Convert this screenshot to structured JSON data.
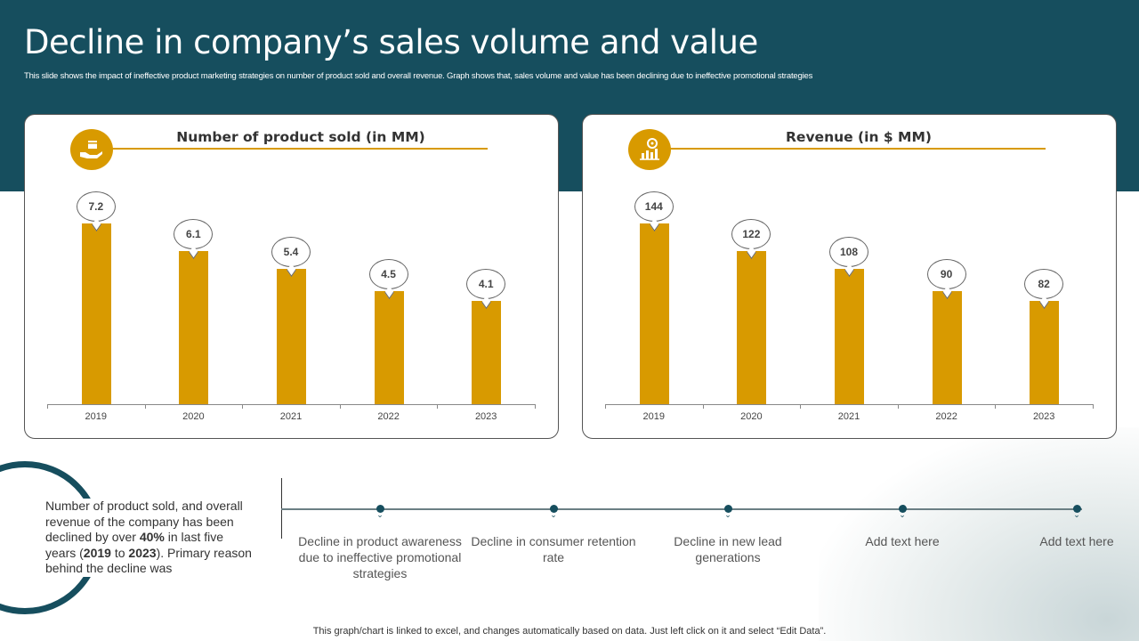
{
  "title": "Decline in company’s sales volume and value",
  "subtitle": "This slide shows the impact of ineffective product marketing strategies on number of product sold and overall revenue. Graph shows that, sales volume and value has been declining due to ineffective promotional strategies",
  "colors": {
    "header": "#164e5e",
    "bar": "#d89a00"
  },
  "chart_data": [
    {
      "type": "bar",
      "title": "Number of product sold (in MM)",
      "icon": "hand-box-icon",
      "categories": [
        "2019",
        "2020",
        "2021",
        "2022",
        "2023"
      ],
      "values": [
        7.2,
        6.1,
        5.4,
        4.5,
        4.1
      ],
      "data_labels": [
        "7.2",
        "6.1",
        "5.4",
        "4.5",
        "4.1"
      ],
      "ylim": [
        0,
        7.2
      ],
      "grid": false
    },
    {
      "type": "bar",
      "title": "Revenue (in $ MM)",
      "icon": "revenue-chart-gear-icon",
      "categories": [
        "2019",
        "2020",
        "2021",
        "2022",
        "2023"
      ],
      "values": [
        144,
        122,
        108,
        90,
        82
      ],
      "data_labels": [
        "144",
        "122",
        "108",
        "90",
        "82"
      ],
      "ylim": [
        0,
        144
      ],
      "grid": false
    }
  ],
  "summary": {
    "p1": "Number of product sold, and overall revenue of the company has been declined by over ",
    "b1": "40%",
    "p2": " in last five years (",
    "b2": "2019",
    "p3": " to ",
    "b3": "2023",
    "p4": "). Primary reason behind the decline was"
  },
  "timeline": [
    "Decline in product awareness due to ineffective promotional strategies",
    "Decline in consumer retention rate",
    "Decline in new lead generations",
    "Add text here",
    "Add text here"
  ],
  "footer": "This graph/chart is linked to excel,  and changes automatically based on data. Just left click on it and select “Edit Data”."
}
